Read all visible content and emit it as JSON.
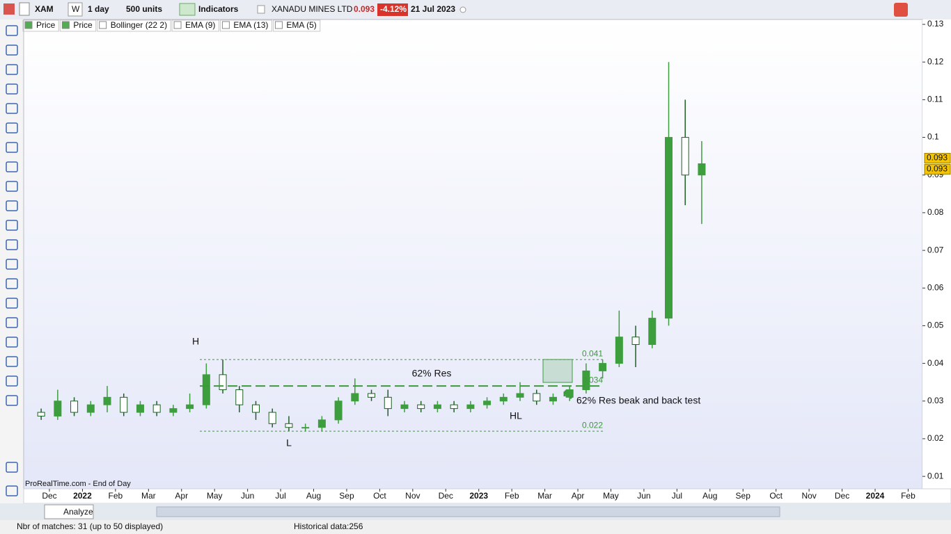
{
  "toolbar": {
    "ticker": "XAM",
    "period_button": "W",
    "timeframe": "1 day",
    "units": "500 units",
    "indicators": "Indicators",
    "name": "XANADU MINES LTD",
    "last": "0.093",
    "change": "-4.12%",
    "date": "21 Jul 2023"
  },
  "legend": [
    "Price",
    "Price",
    "Bollinger (22 2)",
    "EMA (9)",
    "EMA (13)",
    "EMA (5)"
  ],
  "chart_data": {
    "type": "candlestick",
    "categories": [
      null,
      "Dec",
      null,
      "2022",
      null,
      "Feb",
      null,
      "Mar",
      null,
      "Apr",
      null,
      "May",
      null,
      "Jun",
      null,
      "Jul",
      null,
      "Aug",
      null,
      "Sep",
      null,
      "Oct",
      null,
      "Nov",
      null,
      "Dec",
      null,
      "2023",
      null,
      "Feb",
      null,
      "Mar",
      null,
      "Apr",
      null,
      "May",
      null,
      "Jun",
      null,
      "Jul",
      null,
      "Aug",
      null,
      "Sep",
      null,
      "Oct",
      null,
      "Nov",
      null,
      "Dec",
      null,
      "2024",
      null,
      "Feb"
    ],
    "open": [
      0.027,
      0.026,
      0.03,
      0.027,
      0.029,
      0.031,
      0.027,
      0.029,
      0.027,
      0.028,
      0.029,
      0.037,
      0.033,
      0.029,
      0.027,
      0.024,
      0.023,
      0.023,
      0.025,
      0.03,
      0.032,
      0.031,
      0.028,
      0.029,
      0.028,
      0.029,
      0.028,
      0.029,
      0.03,
      0.031,
      0.032,
      0.03,
      0.031,
      0.033,
      0.038,
      0.04,
      0.047,
      0.045,
      0.052,
      0.1,
      0.09,
      null,
      null,
      null,
      null,
      null,
      null,
      null,
      null,
      null,
      null,
      null,
      null,
      null
    ],
    "high": [
      0.028,
      0.033,
      0.031,
      0.03,
      0.034,
      0.032,
      0.03,
      0.03,
      0.029,
      0.032,
      0.04,
      0.041,
      0.034,
      0.03,
      0.028,
      0.026,
      0.024,
      0.026,
      0.031,
      0.036,
      0.033,
      0.033,
      0.03,
      0.03,
      0.03,
      0.03,
      0.03,
      0.031,
      0.032,
      0.035,
      0.033,
      0.032,
      0.034,
      0.04,
      0.041,
      0.054,
      0.05,
      0.054,
      0.12,
      0.11,
      0.099,
      null,
      null,
      null,
      null,
      null,
      null,
      null,
      null,
      null,
      null,
      null,
      null,
      null
    ],
    "low": [
      0.025,
      0.025,
      0.026,
      0.026,
      0.027,
      0.026,
      0.026,
      0.026,
      0.026,
      0.027,
      0.028,
      0.032,
      0.027,
      0.025,
      0.023,
      0.022,
      0.022,
      0.022,
      0.024,
      0.029,
      0.03,
      0.026,
      0.027,
      0.027,
      0.027,
      0.027,
      0.027,
      0.028,
      0.029,
      0.03,
      0.029,
      0.029,
      0.03,
      0.032,
      0.036,
      0.039,
      0.039,
      0.044,
      0.05,
      0.082,
      0.077,
      null,
      null,
      null,
      null,
      null,
      null,
      null,
      null,
      null,
      null,
      null,
      null,
      null
    ],
    "close": [
      0.026,
      0.03,
      0.027,
      0.029,
      0.031,
      0.027,
      0.029,
      0.027,
      0.028,
      0.029,
      0.037,
      0.033,
      0.029,
      0.027,
      0.024,
      0.023,
      0.023,
      0.025,
      0.03,
      0.032,
      0.031,
      0.028,
      0.029,
      0.028,
      0.029,
      0.028,
      0.029,
      0.03,
      0.031,
      0.032,
      0.03,
      0.031,
      0.033,
      0.038,
      0.04,
      0.047,
      0.045,
      0.052,
      0.1,
      0.09,
      0.093,
      null,
      null,
      null,
      null,
      null,
      null,
      null,
      null,
      null,
      null,
      null,
      null,
      null
    ],
    "up_color": "#3c9e3c",
    "down_color": "#1f5f24",
    "ylim": [
      0.0067,
      0.1313
    ],
    "yticks": [
      0.01,
      0.02,
      0.03,
      0.04,
      0.05,
      0.06,
      0.07,
      0.08,
      0.09,
      0.1,
      0.11,
      0.12,
      0.13
    ],
    "grid": false,
    "levels": [
      {
        "value": 0.041,
        "style": "dotted"
      },
      {
        "value": 0.034,
        "style": "dashed"
      },
      {
        "value": 0.022,
        "style": "dotted"
      }
    ],
    "price_tags": [
      0.093,
      0.093
    ],
    "annotations": [
      "H",
      "L",
      "HL",
      "62% Res",
      "62% Res beak and back test"
    ]
  },
  "footer": {
    "source": "ProRealTime.com - End of Day",
    "analyze": "Analyze",
    "matches": "Nbr of matches: 31 (up to 50 displayed)",
    "historical": "Historical data:256"
  }
}
